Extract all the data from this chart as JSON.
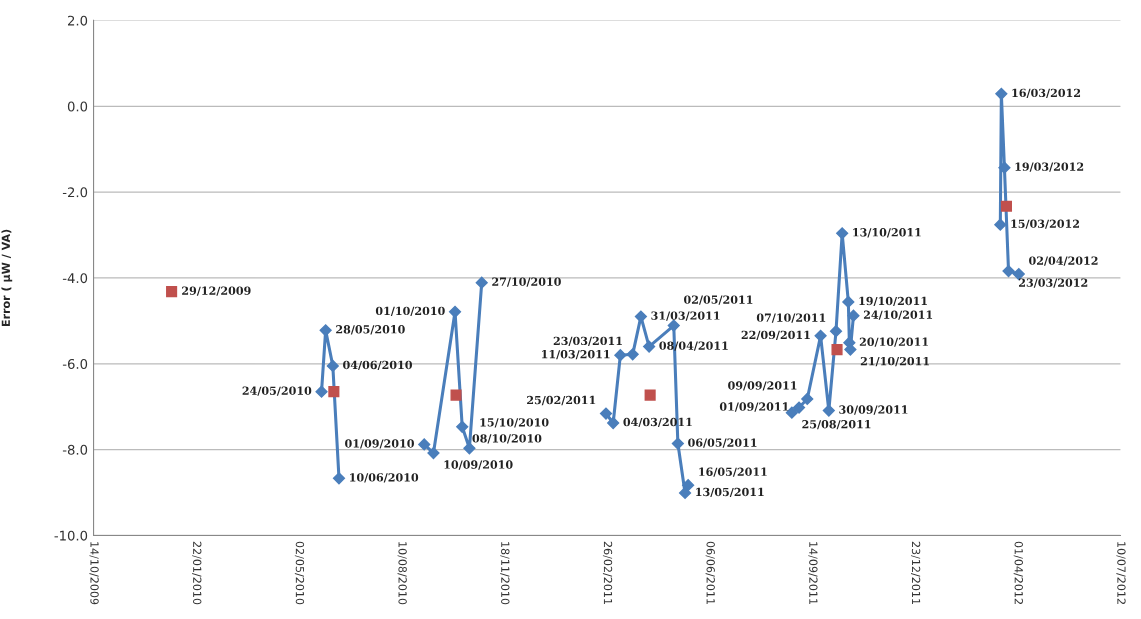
{
  "chart_data": {
    "type": "line",
    "ylabel": "Error ( µW / VA)",
    "xlim": [
      "2009-10-14",
      "2012-07-10"
    ],
    "xticks": [
      {
        "value": "2009-10-14",
        "label": "14/10/2009"
      },
      {
        "value": "2010-01-22",
        "label": "22/01/2010"
      },
      {
        "value": "2010-05-02",
        "label": "02/05/2010"
      },
      {
        "value": "2010-08-10",
        "label": "10/08/2010"
      },
      {
        "value": "2010-11-18",
        "label": "18/11/2010"
      },
      {
        "value": "2011-02-26",
        "label": "26/02/2011"
      },
      {
        "value": "2011-06-06",
        "label": "06/06/2011"
      },
      {
        "value": "2011-09-14",
        "label": "14/09/2011"
      },
      {
        "value": "2011-12-23",
        "label": "23/12/2011"
      },
      {
        "value": "2012-04-01",
        "label": "01/04/2012"
      },
      {
        "value": "2012-07-10",
        "label": "10/07/2012"
      }
    ],
    "ylim": [
      -10,
      2
    ],
    "yticks": [
      {
        "value": -10,
        "label": "-10.0"
      },
      {
        "value": -8,
        "label": "-8.0"
      },
      {
        "value": -6,
        "label": "-6.0"
      },
      {
        "value": -4,
        "label": "-4.0"
      },
      {
        "value": -2,
        "label": "-2.0"
      },
      {
        "value": 0,
        "label": "0.0"
      },
      {
        "value": 2,
        "label": "2.0"
      }
    ],
    "grid": "y",
    "legend": false,
    "line_style": "solid",
    "series": [
      {
        "type": "line",
        "marker": "diamond",
        "color": "#4a7ebb",
        "x": [
          "2010-05-24",
          "2010-05-28",
          "2010-06-04",
          "2010-06-10"
        ],
        "values": [
          -6.65,
          -5.22,
          -6.05,
          -8.67
        ]
      },
      {
        "type": "line",
        "marker": "diamond",
        "color": "#4a7ebb",
        "x": [
          "2010-09-01",
          "2010-09-10",
          "2010-10-01",
          "2010-10-08",
          "2010-10-15",
          "2010-10-27"
        ],
        "values": [
          -7.88,
          -8.08,
          -4.79,
          -7.47,
          -7.97,
          -4.11
        ]
      },
      {
        "type": "line",
        "marker": "diamond",
        "color": "#4a7ebb",
        "x": [
          "2011-02-25",
          "2011-03-04",
          "2011-03-11",
          "2011-03-23",
          "2011-03-31",
          "2011-04-08",
          "2011-05-02",
          "2011-05-06",
          "2011-05-13",
          "2011-05-16"
        ],
        "values": [
          -7.16,
          -7.38,
          -5.8,
          -5.78,
          -4.9,
          -5.6,
          -5.11,
          -7.86,
          -9.01,
          -8.83
        ]
      },
      {
        "type": "line",
        "marker": "diamond",
        "color": "#4a7ebb",
        "x": [
          "2011-08-25",
          "2011-09-01",
          "2011-09-09",
          "2011-09-22",
          "2011-09-30",
          "2011-10-07",
          "2011-10-13",
          "2011-10-19",
          "2011-10-20",
          "2011-10-21",
          "2011-10-24"
        ],
        "values": [
          -7.14,
          -7.02,
          -6.82,
          -5.35,
          -7.09,
          -5.24,
          -2.96,
          -4.56,
          -5.51,
          -5.67,
          -4.88
        ]
      },
      {
        "type": "line",
        "marker": "diamond",
        "color": "#4a7ebb",
        "x": [
          "2012-03-15",
          "2012-03-16",
          "2012-03-19",
          "2012-03-23",
          "2012-04-02"
        ],
        "values": [
          -2.76,
          0.29,
          -1.43,
          -3.84,
          -3.91
        ]
      },
      {
        "type": "scatter",
        "marker": "square",
        "color": "#c0504d",
        "x": [
          "2009-12-29",
          "2010-06-05",
          "2010-10-02",
          "2011-04-09",
          "2011-10-08",
          "2012-03-21"
        ],
        "values": [
          -4.32,
          -6.65,
          -6.73,
          -6.73,
          -5.67,
          -2.33
        ]
      }
    ],
    "annotations": [
      {
        "text": "29/12/2009",
        "x": "2009-12-29",
        "y": -4.32
      },
      {
        "text": "24/05/2010",
        "x": "2010-05-24",
        "y": -6.65
      },
      {
        "text": "28/05/2010",
        "x": "2010-05-28",
        "y": -5.22
      },
      {
        "text": "04/06/2010",
        "x": "2010-06-04",
        "y": -6.05
      },
      {
        "text": "10/06/2010",
        "x": "2010-06-10",
        "y": -8.67
      },
      {
        "text": "01/09/2010",
        "x": "2010-09-01",
        "y": -7.88
      },
      {
        "text": "10/09/2010",
        "x": "2010-09-10",
        "y": -8.08
      },
      {
        "text": "01/10/2010",
        "x": "2010-10-01",
        "y": -4.79
      },
      {
        "text": "08/10/2010",
        "x": "2010-10-08",
        "y": -7.47
      },
      {
        "text": "15/10/2010",
        "x": "2010-10-15",
        "y": -7.97
      },
      {
        "text": "27/10/2010",
        "x": "2010-10-27",
        "y": -4.11
      },
      {
        "text": "25/02/2011",
        "x": "2011-02-25",
        "y": -7.16
      },
      {
        "text": "04/03/2011",
        "x": "2011-03-04",
        "y": -7.38
      },
      {
        "text": "11/03/2011",
        "x": "2011-03-11",
        "y": -5.8
      },
      {
        "text": "23/03/2011",
        "x": "2011-03-23",
        "y": -5.78
      },
      {
        "text": "31/03/2011",
        "x": "2011-03-31",
        "y": -4.9
      },
      {
        "text": "08/04/2011",
        "x": "2011-04-08",
        "y": -5.6
      },
      {
        "text": "02/05/2011",
        "x": "2011-05-02",
        "y": -5.11
      },
      {
        "text": "06/05/2011",
        "x": "2011-05-06",
        "y": -7.86
      },
      {
        "text": "13/05/2011",
        "x": "2011-05-13",
        "y": -9.01
      },
      {
        "text": "16/05/2011",
        "x": "2011-05-16",
        "y": -8.83
      },
      {
        "text": "25/08/2011",
        "x": "2011-08-25",
        "y": -7.14
      },
      {
        "text": "01/09/2011",
        "x": "2011-09-01",
        "y": -7.02
      },
      {
        "text": "09/09/2011",
        "x": "2011-09-09",
        "y": -6.82
      },
      {
        "text": "22/09/2011",
        "x": "2011-09-22",
        "y": -5.35
      },
      {
        "text": "30/09/2011",
        "x": "2011-09-30",
        "y": -7.09
      },
      {
        "text": "07/10/2011",
        "x": "2011-10-07",
        "y": -5.24
      },
      {
        "text": "13/10/2011",
        "x": "2011-10-13",
        "y": -2.96
      },
      {
        "text": "19/10/2011",
        "x": "2011-10-19",
        "y": -4.56
      },
      {
        "text": "20/10/2011",
        "x": "2011-10-20",
        "y": -5.51
      },
      {
        "text": "21/10/2011",
        "x": "2011-10-21",
        "y": -5.67
      },
      {
        "text": "24/10/2011",
        "x": "2011-10-24",
        "y": -4.88
      },
      {
        "text": "15/03/2012",
        "x": "2012-03-15",
        "y": -2.76
      },
      {
        "text": "16/03/2012",
        "x": "2012-03-16",
        "y": 0.29
      },
      {
        "text": "19/03/2012",
        "x": "2012-03-19",
        "y": -1.43
      },
      {
        "text": "23/03/2012",
        "x": "2012-03-23",
        "y": -3.84
      },
      {
        "text": "02/04/2012",
        "x": "2012-04-02",
        "y": -3.91
      }
    ]
  }
}
